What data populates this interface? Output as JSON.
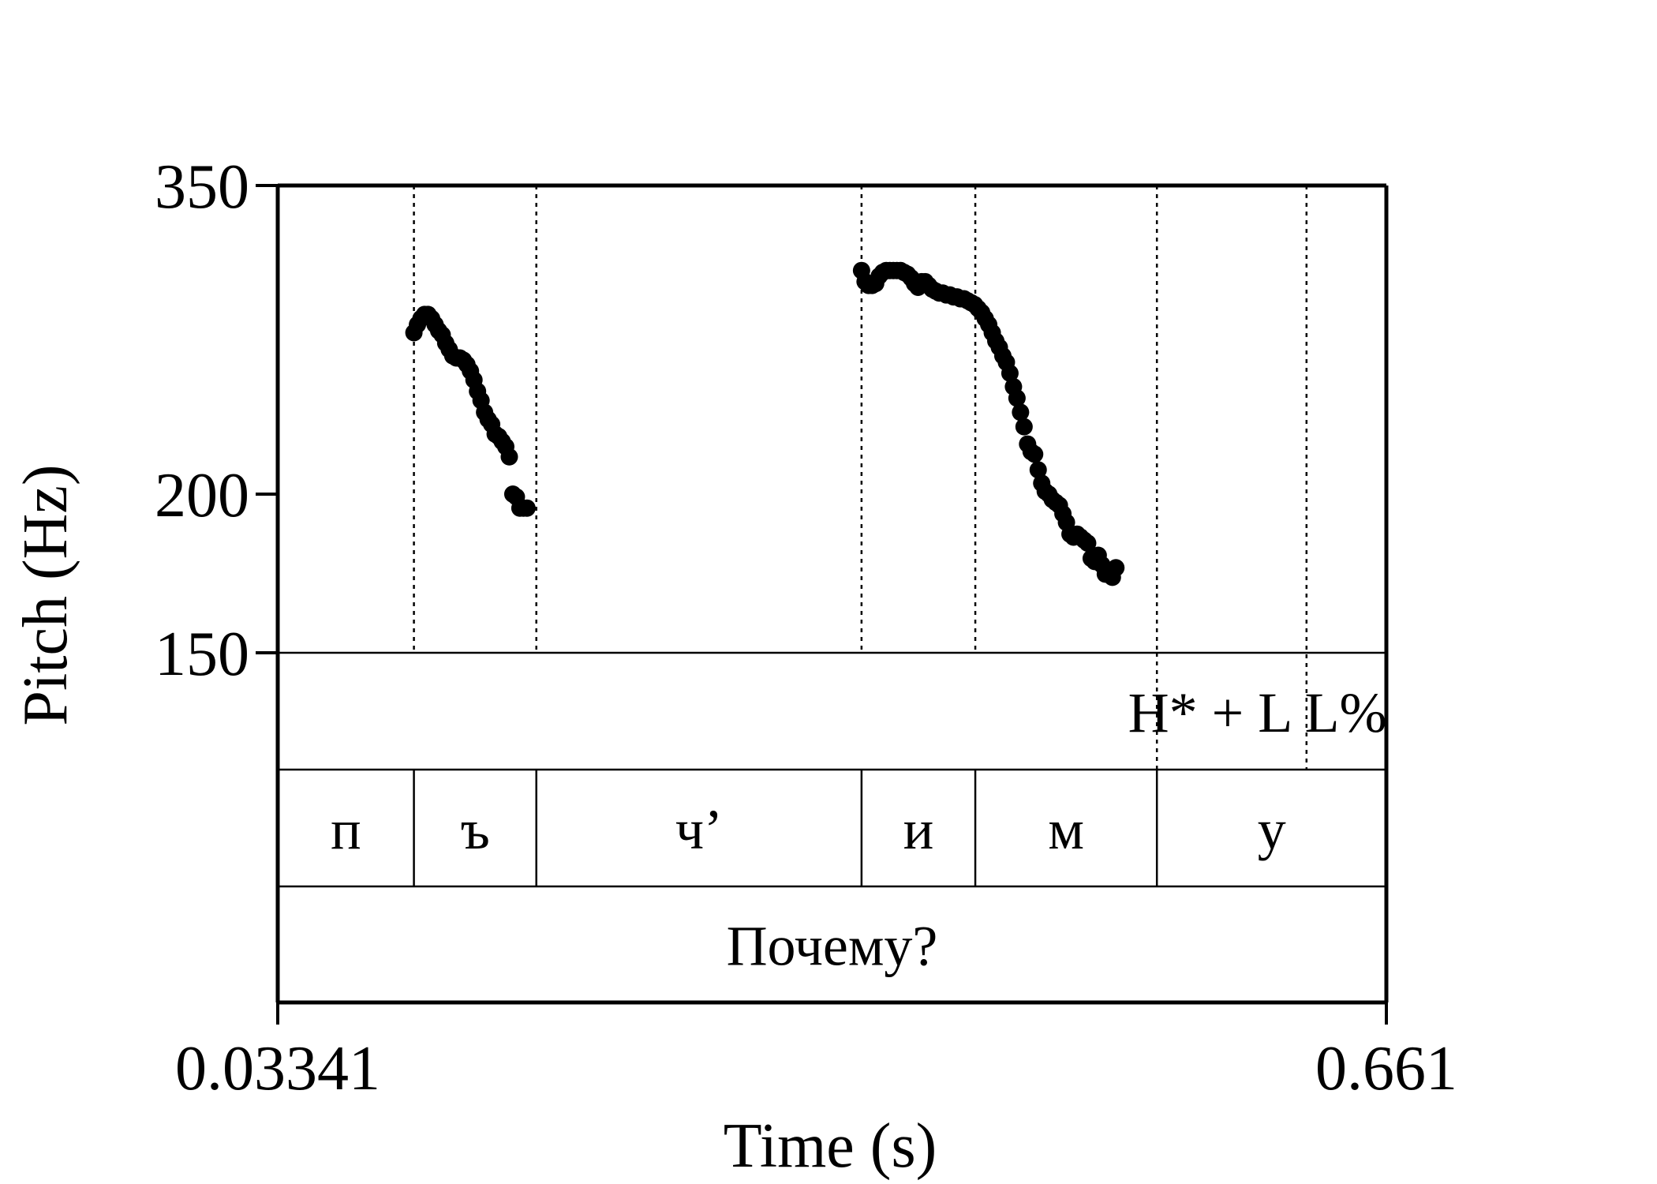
{
  "chart_data": {
    "type": "scatter",
    "xlabel": "Time (s)",
    "ylabel": "Pitch (Hz)",
    "xlim": [
      0.03341,
      0.661
    ],
    "ylim": [
      150,
      350
    ],
    "y_scale": "log",
    "y_ticks": [
      {
        "value": 350,
        "label": "350"
      },
      {
        "value": 200,
        "label": "200"
      },
      {
        "value": 150,
        "label": "150"
      }
    ],
    "x_ticks": [
      {
        "value": 0.03341,
        "label": "0.03341"
      },
      {
        "value": 0.661,
        "label": "0.661"
      }
    ],
    "boundaries": [
      0.1105,
      0.1798,
      0.3639,
      0.4283,
      0.5311
    ],
    "tone_boundary": 0.6158,
    "series": [
      {
        "points": [
          [
            0.1105,
            268
          ],
          [
            0.1125,
            272
          ],
          [
            0.1145,
            275
          ],
          [
            0.1165,
            277
          ],
          [
            0.1185,
            277
          ],
          [
            0.1205,
            275
          ],
          [
            0.1225,
            272
          ],
          [
            0.1245,
            269
          ],
          [
            0.1265,
            267
          ],
          [
            0.1285,
            263
          ],
          [
            0.1305,
            260
          ],
          [
            0.1325,
            257
          ],
          [
            0.1345,
            256
          ],
          [
            0.1365,
            256
          ],
          [
            0.1385,
            255
          ],
          [
            0.1405,
            253
          ],
          [
            0.1425,
            250
          ],
          [
            0.1445,
            246
          ],
          [
            0.1465,
            241
          ],
          [
            0.1485,
            237
          ],
          [
            0.1505,
            232
          ],
          [
            0.1525,
            229
          ],
          [
            0.1545,
            227
          ],
          [
            0.1565,
            223
          ],
          [
            0.1585,
            222
          ],
          [
            0.1605,
            220
          ],
          [
            0.1625,
            218
          ],
          [
            0.1645,
            214
          ],
          [
            0.1665,
            200
          ],
          [
            0.1685,
            199
          ],
          [
            0.1705,
            195
          ],
          [
            0.1725,
            195
          ],
          [
            0.1745,
            195
          ]
        ]
      },
      {
        "points": [
          [
            0.3639,
            300
          ],
          [
            0.3659,
            294
          ],
          [
            0.3679,
            292
          ],
          [
            0.3699,
            292
          ],
          [
            0.3719,
            293
          ],
          [
            0.3739,
            297
          ],
          [
            0.3759,
            299
          ],
          [
            0.3779,
            300
          ],
          [
            0.3799,
            300
          ],
          [
            0.3819,
            300
          ],
          [
            0.3839,
            300
          ],
          [
            0.3859,
            300
          ],
          [
            0.3879,
            299
          ],
          [
            0.3899,
            298
          ],
          [
            0.3919,
            296
          ],
          [
            0.3939,
            293
          ],
          [
            0.3959,
            291
          ],
          [
            0.3979,
            294
          ],
          [
            0.3999,
            294
          ],
          [
            0.4019,
            292
          ],
          [
            0.4039,
            290
          ],
          [
            0.4059,
            289
          ],
          [
            0.4079,
            288
          ],
          [
            0.4099,
            288
          ],
          [
            0.4119,
            287
          ],
          [
            0.4139,
            287
          ],
          [
            0.4159,
            286
          ],
          [
            0.4179,
            286
          ],
          [
            0.4199,
            285
          ],
          [
            0.4219,
            285
          ],
          [
            0.4239,
            284
          ],
          [
            0.4259,
            283
          ],
          [
            0.4279,
            282
          ],
          [
            0.4299,
            280
          ],
          [
            0.4319,
            278
          ],
          [
            0.4339,
            275
          ],
          [
            0.4359,
            272
          ],
          [
            0.4379,
            268
          ],
          [
            0.4399,
            264
          ],
          [
            0.4419,
            261
          ],
          [
            0.4439,
            257
          ],
          [
            0.4459,
            254
          ],
          [
            0.4479,
            249
          ],
          [
            0.4499,
            243
          ],
          [
            0.4519,
            238
          ],
          [
            0.4539,
            232
          ],
          [
            0.4559,
            226
          ],
          [
            0.4579,
            219
          ],
          [
            0.4599,
            216
          ],
          [
            0.4619,
            215
          ],
          [
            0.4639,
            209
          ],
          [
            0.4659,
            204
          ],
          [
            0.4679,
            201
          ],
          [
            0.4699,
            200
          ],
          [
            0.4719,
            198
          ],
          [
            0.4739,
            197
          ],
          [
            0.4759,
            196
          ],
          [
            0.4779,
            193
          ],
          [
            0.4799,
            190
          ],
          [
            0.4819,
            186
          ],
          [
            0.4839,
            185
          ],
          [
            0.4859,
            186
          ],
          [
            0.4879,
            185
          ],
          [
            0.4899,
            184
          ],
          [
            0.4919,
            183
          ],
          [
            0.4939,
            178
          ],
          [
            0.4959,
            177
          ],
          [
            0.4979,
            179
          ],
          [
            0.4999,
            176
          ],
          [
            0.5019,
            173
          ],
          [
            0.5039,
            173
          ],
          [
            0.5059,
            172
          ],
          [
            0.5079,
            175
          ]
        ]
      }
    ],
    "tiers": [
      {
        "labels": [
          {
            "text": "H* + L L%",
            "x": 0.588
          }
        ]
      },
      {
        "labels": [
          {
            "text": "п",
            "x": 0.072
          },
          {
            "text": "ъ",
            "x": 0.1452
          },
          {
            "text": "ч’",
            "x": 0.2719
          },
          {
            "text": "и",
            "x": 0.3961
          },
          {
            "text": "м",
            "x": 0.4797
          },
          {
            "text": "у",
            "x": 0.5961
          }
        ]
      },
      {
        "labels": [
          {
            "text": "Почему?",
            "x": 0.3472
          }
        ]
      }
    ]
  }
}
